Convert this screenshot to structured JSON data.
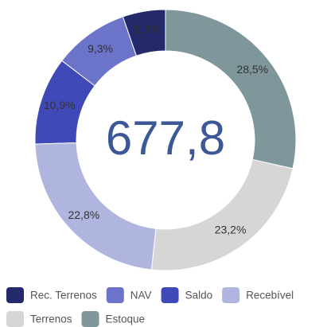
{
  "chart_data": {
    "type": "pie",
    "categories": [
      "Rec. Terrenos",
      "NAV",
      "Saldo",
      "Recebível",
      "Terrenos",
      "Estoque"
    ],
    "values": [
      5.3,
      9.3,
      10.9,
      22.8,
      23.2,
      28.5
    ],
    "value_labels": [
      "5,3%",
      "9,3%",
      "10,9%",
      "22,8%",
      "23,2%",
      "28,5%"
    ],
    "colors": [
      "#24296b",
      "#6b74c9",
      "#3f4ab8",
      "#b0b5e0",
      "#d6d6d6",
      "#7f979b"
    ],
    "annotation": "677,8",
    "startangle": 90,
    "counterclock": true,
    "legend": "bottom"
  }
}
